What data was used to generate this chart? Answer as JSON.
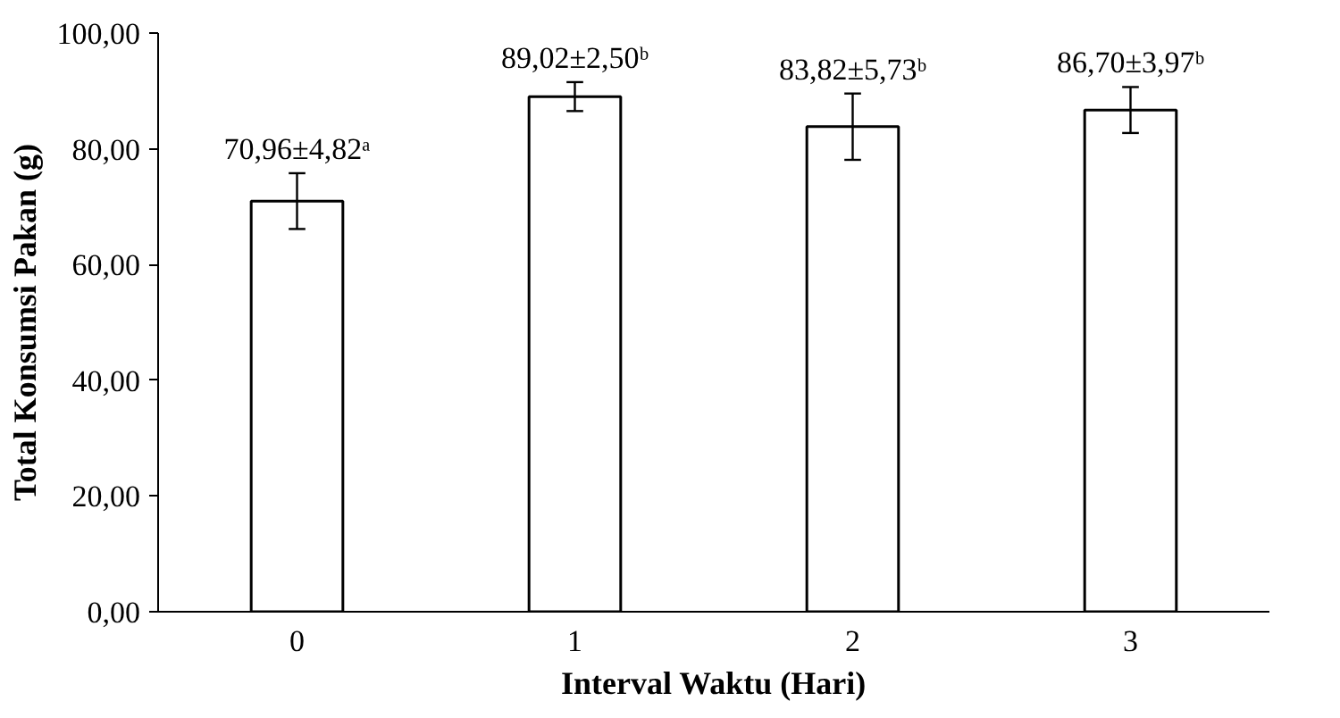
{
  "chart_data": {
    "type": "bar",
    "xlabel": "Interval Waktu (Hari)",
    "ylabel": "Total Konsumsi Pakan (g)",
    "categories": [
      "0",
      "1",
      "2",
      "3"
    ],
    "values": [
      70.96,
      89.02,
      83.82,
      86.7
    ],
    "errors": [
      4.82,
      2.5,
      5.73,
      3.97
    ],
    "value_labels": [
      "70,96±4,82ᵃ",
      "89,02±2,50ᵇ",
      "83,82±5,73ᵇ",
      "86,70±3,97ᵇ"
    ],
    "color": "#ffffff",
    "ylim": [
      0,
      100
    ],
    "yticks": [
      {
        "value": 0,
        "label": "0,00"
      },
      {
        "value": 20,
        "label": "20,00"
      },
      {
        "value": 40,
        "label": "40,00"
      },
      {
        "value": 60,
        "label": "60,00"
      },
      {
        "value": 80,
        "label": "80,00"
      },
      {
        "value": 100,
        "label": "100,00"
      }
    ],
    "grid": false
  }
}
